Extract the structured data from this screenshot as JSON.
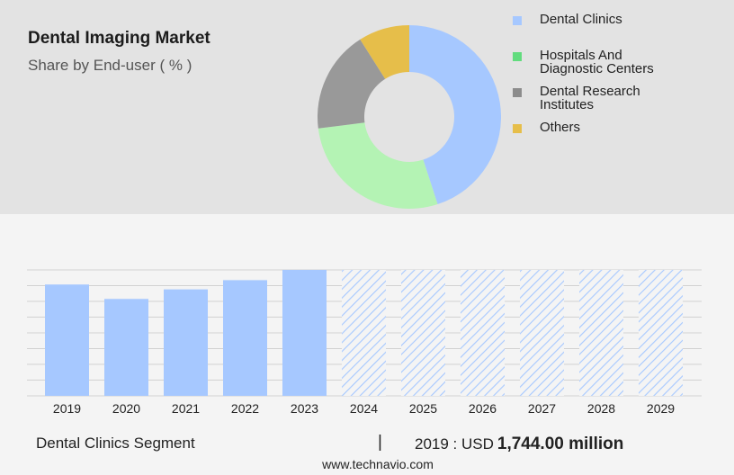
{
  "header": {
    "title": "Dental Imaging Market",
    "subtitle": "Share by End-user ( % )"
  },
  "footer": {
    "segment_label": "Dental Clinics Segment",
    "separator": "|",
    "year_prefix": "2019 : USD",
    "value_text": "1,744.00 million",
    "source": "www.technavio.com"
  },
  "chart_data": [
    {
      "type": "pie",
      "variant": "donut",
      "categories": [
        "Dental Clinics",
        "Hospitals And Diagnostic Centers",
        "Dental Research Institutes",
        "Others"
      ],
      "legend_lines": [
        [
          "Dental Clinics"
        ],
        [
          "Hospitals And",
          "Diagnostic Centers"
        ],
        [
          "Dental Research",
          "Institutes"
        ],
        [
          "Others"
        ]
      ],
      "values": [
        45,
        28,
        18,
        9
      ],
      "colors": [
        "#a6c8ff",
        "#b4f3b4",
        "#999999",
        "#e6be4a"
      ],
      "legend_colors": [
        "#a6c8ff",
        "#62dc7e",
        "#8c8c8c",
        "#e6be4a"
      ],
      "legend_position": "right"
    },
    {
      "type": "bar",
      "categories": [
        "2019",
        "2020",
        "2021",
        "2022",
        "2023",
        "2024",
        "2025",
        "2026",
        "2027",
        "2028",
        "2029"
      ],
      "values": [
        1744,
        1518,
        1668,
        1812,
        1973,
        null,
        null,
        null,
        null,
        null,
        null
      ],
      "forecast_categories": [
        "2024",
        "2025",
        "2026",
        "2027",
        "2028",
        "2029"
      ],
      "forecast_style": "hatched",
      "ylim": [
        0,
        1973
      ],
      "grid": true,
      "color": "#a6c8ff"
    }
  ]
}
